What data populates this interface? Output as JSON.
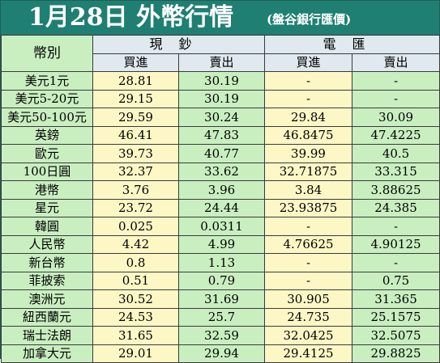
{
  "title": {
    "main": "1月28日 外幣行情",
    "sub": "(盤谷銀行匯價)"
  },
  "header": {
    "currency_label": "幣別",
    "cash_label": "現鈔",
    "wire_label": "電匯",
    "buy_label": "買進",
    "sell_label": "賣出"
  },
  "rows": [
    {
      "currency": "美元1元",
      "cash_buy": "28.81",
      "cash_sell": "30.19",
      "wire_buy": "-",
      "wire_sell": "-"
    },
    {
      "currency": "美元5-20元",
      "cash_buy": "29.15",
      "cash_sell": "30.19",
      "wire_buy": "-",
      "wire_sell": "-"
    },
    {
      "currency": "美元50-100元",
      "cash_buy": "29.59",
      "cash_sell": "30.24",
      "wire_buy": "29.84",
      "wire_sell": "30.09"
    },
    {
      "currency": "英鎊",
      "cash_buy": "46.41",
      "cash_sell": "47.83",
      "wire_buy": "46.8475",
      "wire_sell": "47.4225"
    },
    {
      "currency": "歐元",
      "cash_buy": "39.73",
      "cash_sell": "40.77",
      "wire_buy": "39.99",
      "wire_sell": "40.5"
    },
    {
      "currency": "100日圓",
      "cash_buy": "32.37",
      "cash_sell": "33.62",
      "wire_buy": "32.71875",
      "wire_sell": "33.315"
    },
    {
      "currency": "港幣",
      "cash_buy": "3.76",
      "cash_sell": "3.96",
      "wire_buy": "3.84",
      "wire_sell": "3.88625"
    },
    {
      "currency": "星元",
      "cash_buy": "23.72",
      "cash_sell": "24.44",
      "wire_buy": "23.93875",
      "wire_sell": "24.385"
    },
    {
      "currency": "韓圓",
      "cash_buy": "0.025",
      "cash_sell": "0.0311",
      "wire_buy": "-",
      "wire_sell": "-"
    },
    {
      "currency": "人民幣",
      "cash_buy": "4.42",
      "cash_sell": "4.99",
      "wire_buy": "4.76625",
      "wire_sell": "4.90125"
    },
    {
      "currency": "新台幣",
      "cash_buy": "0.8",
      "cash_sell": "1.13",
      "wire_buy": "-",
      "wire_sell": "-"
    },
    {
      "currency": "菲披索",
      "cash_buy": "0.51",
      "cash_sell": "0.79",
      "wire_buy": "-",
      "wire_sell": "0.75"
    },
    {
      "currency": "澳洲元",
      "cash_buy": "30.52",
      "cash_sell": "31.69",
      "wire_buy": "30.905",
      "wire_sell": "31.365"
    },
    {
      "currency": "紐西蘭元",
      "cash_buy": "24.53",
      "cash_sell": "25.7",
      "wire_buy": "24.735",
      "wire_sell": "25.1575"
    },
    {
      "currency": "瑞士法朗",
      "cash_buy": "31.65",
      "cash_sell": "32.59",
      "wire_buy": "32.0425",
      "wire_sell": "32.5075"
    },
    {
      "currency": "加拿大元",
      "cash_buy": "29.01",
      "cash_sell": "29.94",
      "wire_buy": "29.4125",
      "wire_sell": "29.8825"
    }
  ]
}
